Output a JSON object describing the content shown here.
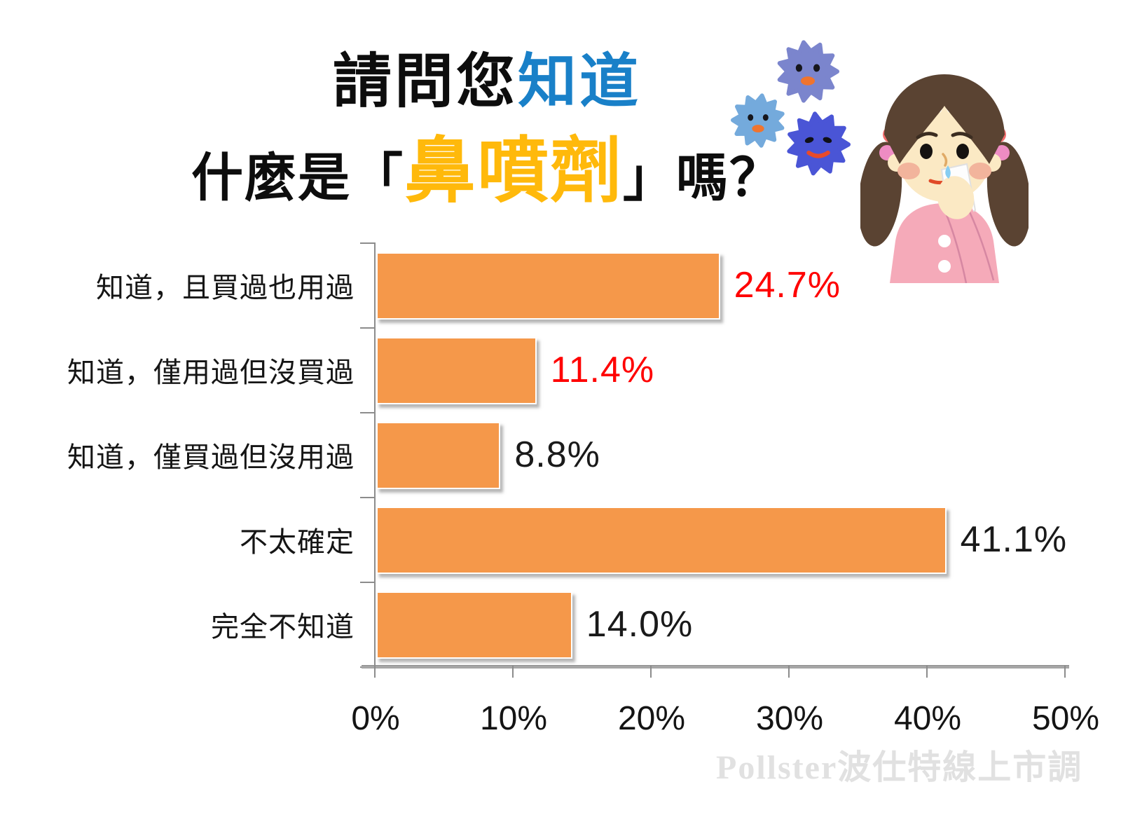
{
  "title": {
    "line1_black": "請問您",
    "line1_blue": "知道",
    "line2_pre": "什麼是「",
    "line2_gold": "鼻噴劑",
    "line2_post": "」嗎？"
  },
  "colors": {
    "bar_fill": "#F5984A",
    "title_blue": "#1980C8",
    "title_gold": "#FFB90B",
    "value_red": "#FF0000",
    "value_black": "#1A1A1A",
    "axis_gray": "#8C8C8C",
    "watermark_gray": "#E1E1E1"
  },
  "chart_data": {
    "type": "bar",
    "orientation": "horizontal",
    "title": "請問您知道什麼是「鼻噴劑」嗎？",
    "categories": [
      "知道，且買過也用過",
      "知道，僅用過但沒買過",
      "知道，僅買過但沒用過",
      "不太確定",
      "完全不知道"
    ],
    "values": [
      24.7,
      11.4,
      8.8,
      41.1,
      14.0
    ],
    "value_labels": [
      "24.7%",
      "11.4%",
      "8.8%",
      "41.1%",
      "14.0%"
    ],
    "value_label_colors": [
      "#FF0000",
      "#FF0000",
      "#1A1A1A",
      "#1A1A1A",
      "#1A1A1A"
    ],
    "x_ticks": [
      "0%",
      "10%",
      "20%",
      "30%",
      "40%",
      "50%"
    ],
    "x_tick_values": [
      0,
      10,
      20,
      30,
      40,
      50
    ],
    "xlim": [
      0,
      50
    ],
    "grid": false,
    "legend": false,
    "bar_color": "#F5984A"
  },
  "decorations": {
    "viruses": [
      {
        "name": "virus-icon-periwinkle",
        "color": "#7B85CD",
        "mood": "happy"
      },
      {
        "name": "virus-icon-lightblue",
        "color": "#74AADC",
        "mood": "happy"
      },
      {
        "name": "virus-icon-blue",
        "color": "#4A55D6",
        "mood": "angry"
      }
    ],
    "girl": "girl-using-nasal-spray-illustration"
  },
  "watermark": "Pollster波仕特線上市調"
}
